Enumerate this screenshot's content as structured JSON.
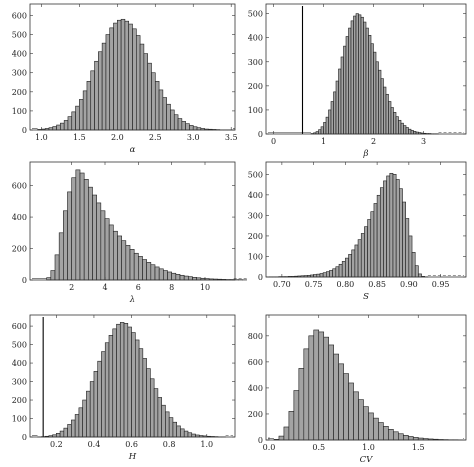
{
  "chart_data": [
    {
      "type": "bar",
      "xlabel": "α",
      "xlim": [
        0.85,
        3.55
      ],
      "ylim": [
        0,
        660
      ],
      "xticks": [
        1.0,
        1.5,
        2.0,
        2.5,
        3.0,
        3.5
      ],
      "xtick_labels": [
        "1.0",
        "1.5",
        "2.0",
        "2.5",
        "3.0",
        "3.5"
      ],
      "yticks": [
        0,
        100,
        200,
        300,
        400,
        500,
        600
      ],
      "ytick_labels": [
        "0",
        "100",
        "200",
        "300",
        "400",
        "500",
        "600"
      ],
      "bin_start": 0.95,
      "bin_width": 0.05,
      "values": [
        3,
        5,
        8,
        12,
        18,
        26,
        36,
        50,
        70,
        95,
        125,
        160,
        205,
        255,
        310,
        360,
        410,
        455,
        500,
        535,
        560,
        575,
        580,
        570,
        555,
        530,
        495,
        450,
        400,
        350,
        300,
        255,
        210,
        170,
        135,
        105,
        80,
        60,
        45,
        33,
        24,
        17,
        12,
        8,
        5,
        4,
        3,
        2,
        1,
        1,
        1,
        1
      ],
      "vline": null
    },
    {
      "type": "bar",
      "xlabel": "β",
      "xlim": [
        -0.15,
        3.85
      ],
      "ylim": [
        0,
        540
      ],
      "xticks": [
        0,
        1,
        2,
        3
      ],
      "xtick_labels": [
        "0",
        "1",
        "2",
        "3"
      ],
      "yticks": [
        0,
        100,
        200,
        300,
        400,
        500
      ],
      "ytick_labels": [
        "0",
        "100",
        "200",
        "300",
        "400",
        "500"
      ],
      "bin_start": 0.75,
      "bin_width": 0.05,
      "values": [
        2,
        5,
        10,
        18,
        30,
        48,
        70,
        100,
        135,
        175,
        220,
        270,
        320,
        365,
        405,
        440,
        470,
        490,
        500,
        495,
        485,
        465,
        440,
        410,
        375,
        340,
        300,
        265,
        230,
        195,
        165,
        135,
        110,
        90,
        72,
        57,
        45,
        35,
        27,
        20,
        15,
        11,
        8,
        6,
        4,
        3,
        2,
        2,
        1,
        1,
        1
      ],
      "vline": 0.58
    },
    {
      "type": "bar",
      "xlabel": "λ",
      "xlim": [
        -0.5,
        11.8
      ],
      "ylim": [
        0,
        750
      ],
      "xticks": [
        2,
        4,
        6,
        8,
        10
      ],
      "xtick_labels": [
        "2",
        "4",
        "6",
        "8",
        "10"
      ],
      "yticks": [
        0,
        200,
        400,
        600
      ],
      "ytick_labels": [
        "0",
        "200",
        "400",
        "600"
      ],
      "bin_start": 0.5,
      "bin_width": 0.25,
      "values": [
        15,
        60,
        160,
        300,
        440,
        560,
        650,
        700,
        680,
        640,
        590,
        540,
        490,
        440,
        390,
        350,
        310,
        280,
        250,
        220,
        195,
        170,
        150,
        130,
        112,
        97,
        83,
        71,
        60,
        51,
        43,
        36,
        30,
        25,
        21,
        17,
        14,
        11,
        9,
        7,
        6,
        5,
        4,
        3,
        3,
        2,
        2,
        1
      ],
      "vline": null
    },
    {
      "type": "bar",
      "xlabel": "S",
      "xlim": [
        0.675,
        0.99
      ],
      "ylim": [
        0,
        560
      ],
      "xticks": [
        0.7,
        0.75,
        0.8,
        0.85,
        0.9,
        0.95
      ],
      "xtick_labels": [
        "0.70",
        "0.75",
        "0.80",
        "0.85",
        "0.90",
        "0.95"
      ],
      "yticks": [
        0,
        100,
        200,
        300,
        400,
        500
      ],
      "ytick_labels": [
        "0",
        "100",
        "200",
        "300",
        "400",
        "500"
      ],
      "bin_start": 0.68,
      "bin_width": 0.005,
      "values": [
        1,
        1,
        1,
        2,
        2,
        2,
        3,
        3,
        4,
        5,
        6,
        7,
        8,
        10,
        12,
        14,
        17,
        21,
        26,
        32,
        40,
        50,
        62,
        76,
        92,
        110,
        132,
        156,
        182,
        212,
        245,
        280,
        318,
        358,
        398,
        435,
        468,
        492,
        505,
        500,
        475,
        430,
        365,
        285,
        200,
        120,
        55,
        15,
        3,
        1
      ],
      "vline": null
    },
    {
      "type": "bar",
      "xlabel": "H",
      "xlim": [
        0.06,
        1.15
      ],
      "ylim": [
        0,
        660
      ],
      "xticks": [
        0.2,
        0.4,
        0.6,
        0.8,
        1.0
      ],
      "xtick_labels": [
        "0.2",
        "0.4",
        "0.6",
        "0.8",
        "1.0"
      ],
      "yticks": [
        0,
        100,
        200,
        300,
        400,
        500,
        600
      ],
      "ytick_labels": [
        "0",
        "100",
        "200",
        "300",
        "400",
        "500",
        "600"
      ],
      "bin_start": 0.1,
      "bin_width": 0.02,
      "values": [
        1,
        2,
        4,
        7,
        12,
        20,
        32,
        48,
        68,
        92,
        122,
        158,
        200,
        248,
        300,
        355,
        410,
        462,
        510,
        550,
        585,
        610,
        620,
        615,
        595,
        565,
        525,
        478,
        425,
        370,
        315,
        262,
        214,
        172,
        136,
        105,
        80,
        60,
        44,
        32,
        23,
        16,
        11,
        8,
        6,
        4,
        3,
        2,
        1,
        1
      ],
      "vline": 0.13
    },
    {
      "type": "bar",
      "xlabel": "CV",
      "xlim": [
        -0.03,
        1.98
      ],
      "ylim": [
        0,
        960
      ],
      "xticks": [
        0.0,
        0.5,
        1.0,
        1.5
      ],
      "xtick_labels": [
        "0.0",
        "0.5",
        "1.0",
        "1.5"
      ],
      "yticks": [
        0,
        200,
        400,
        600,
        800
      ],
      "ytick_labels": [
        "0",
        "200",
        "400",
        "600",
        "800"
      ],
      "bin_start": 0.05,
      "bin_width": 0.05,
      "values": [
        5,
        30,
        100,
        220,
        380,
        550,
        700,
        800,
        845,
        830,
        790,
        730,
        660,
        585,
        510,
        438,
        370,
        310,
        256,
        208,
        168,
        134,
        105,
        82,
        63,
        48,
        36,
        27,
        20,
        15,
        11,
        8,
        6,
        4,
        3,
        2,
        2,
        1
      ],
      "vline": null
    }
  ]
}
